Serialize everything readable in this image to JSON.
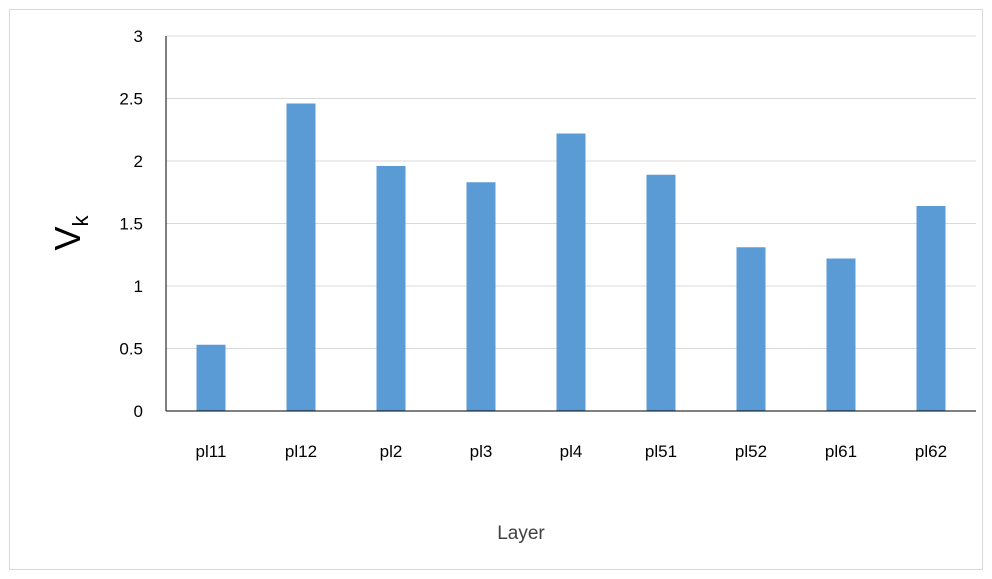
{
  "chart_data": {
    "type": "bar",
    "categories": [
      "pl11",
      "pl12",
      "pl2",
      "pl3",
      "pl4",
      "pl51",
      "pl52",
      "pl61",
      "pl62"
    ],
    "values": [
      0.53,
      2.46,
      1.96,
      1.83,
      2.22,
      1.89,
      1.31,
      1.22,
      1.64
    ],
    "title": "",
    "xlabel": "Layer",
    "ylabel": "V",
    "ylabel_subscript": "k",
    "ylim": [
      0,
      3
    ],
    "yticks": [
      0,
      0.5,
      1,
      1.5,
      2,
      2.5,
      3
    ],
    "ytick_labels": [
      "0",
      "0.5",
      "1",
      "1.5",
      "2",
      "2.5",
      "3"
    ],
    "grid": "horizontal",
    "legend": "none",
    "bar_color": "#5b9bd5",
    "grid_color": "#d9d9d9"
  }
}
